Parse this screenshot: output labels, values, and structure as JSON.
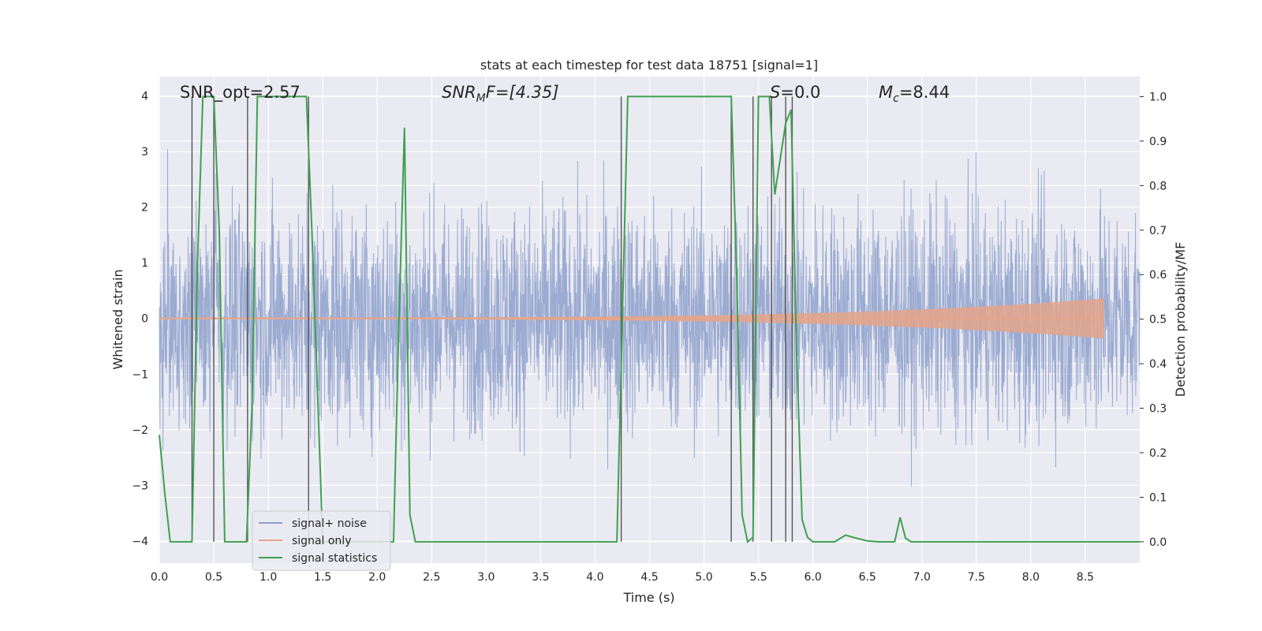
{
  "chart_data": {
    "type": "line",
    "title": "stats at each timestep for test data 18751 [signal=1]",
    "xlabel": "Time (s)",
    "ylabel_left": "Whitened strain",
    "ylabel_right": "Detection probability/MF",
    "xlim": [
      0.0,
      9.0
    ],
    "ylim_left": [
      -4.4,
      4.35
    ],
    "ylim_right": [
      -0.048,
      1.045
    ],
    "x_ticks": [
      0.0,
      0.5,
      1.0,
      1.5,
      2.0,
      2.5,
      3.0,
      3.5,
      4.0,
      4.5,
      5.0,
      5.5,
      6.0,
      6.5,
      7.0,
      7.5,
      8.0,
      8.5
    ],
    "x_tick_labels": [
      "0.0",
      "0.5",
      "1.0",
      "1.5",
      "2.0",
      "2.5",
      "3.0",
      "3.5",
      "4.0",
      "4.5",
      "5.0",
      "5.5",
      "6.0",
      "6.5",
      "7.0",
      "7.5",
      "8.0",
      "8.5"
    ],
    "y_ticks_left": [
      4,
      3,
      2,
      1,
      0,
      -1,
      -2,
      -3,
      -4
    ],
    "y_tick_labels_left": [
      "4",
      "3",
      "2",
      "1",
      "0",
      "−1",
      "−2",
      "−3",
      "−4"
    ],
    "y_ticks_right": [
      1.0,
      0.9,
      0.8,
      0.7,
      0.6,
      0.5,
      0.4,
      0.3,
      0.2,
      0.1,
      0.0
    ],
    "y_tick_labels_right": [
      "1.0",
      "0.9",
      "0.8",
      "0.7",
      "0.6",
      "0.5",
      "0.4",
      "0.3",
      "0.2",
      "0.1",
      "0.0"
    ],
    "grid": true,
    "annotations": {
      "snr_opt": "SNR_opt=2.57",
      "snr_mf_base": "SNR",
      "snr_mf_sub": "M",
      "snr_mf_rest": "F=[4.35]",
      "s_base": "S",
      "s_rest": "=0.0",
      "mc_base": "M",
      "mc_sub": "c",
      "mc_rest": "=8.44"
    },
    "legend": {
      "position": "lower-left",
      "entries": [
        "signal+ noise",
        "signal only",
        "signal statistics"
      ]
    },
    "series": [
      {
        "name": "signal+ noise",
        "axis": "left",
        "style": "noise",
        "color": "#8da0cb",
        "duration": 9.0,
        "amplitude_sigma": 1.0,
        "peak_max": 3.95,
        "peak_min": -4.0
      },
      {
        "name": "signal only",
        "axis": "left",
        "style": "chirp",
        "color": "#e4a58b",
        "t_start": 0.0,
        "t_end": 8.67,
        "amp_start": 0.01,
        "amp_end": 0.35
      },
      {
        "name": "signal statistics",
        "axis": "right",
        "style": "line",
        "color": "#3fa04f",
        "x": [
          0.0,
          0.05,
          0.1,
          0.15,
          0.2,
          0.25,
          0.3,
          0.35,
          0.4,
          0.45,
          0.5,
          0.55,
          0.6,
          0.65,
          0.7,
          0.75,
          0.8,
          0.85,
          0.9,
          0.95,
          1.0,
          1.05,
          1.1,
          1.15,
          1.2,
          1.25,
          1.3,
          1.35,
          1.4,
          1.45,
          1.5,
          1.55,
          1.6,
          1.7,
          1.8,
          1.9,
          2.0,
          2.05,
          2.1,
          2.15,
          2.2,
          2.25,
          2.3,
          2.35,
          2.4,
          2.45,
          2.5,
          2.55,
          2.6,
          2.7,
          3.0,
          3.5,
          4.0,
          4.2,
          4.25,
          4.3,
          4.5,
          5.0,
          5.25,
          5.3,
          5.35,
          5.4,
          5.45,
          5.5,
          5.55,
          5.6,
          5.65,
          5.7,
          5.75,
          5.8,
          5.85,
          5.9,
          5.95,
          6.0,
          6.05,
          6.1,
          6.2,
          6.3,
          6.4,
          6.5,
          6.6,
          6.7,
          6.75,
          6.8,
          6.85,
          6.9,
          7.0,
          7.5,
          8.0,
          8.5,
          9.0
        ],
        "y": [
          0.24,
          0.11,
          0.0,
          0.0,
          0.0,
          0.0,
          0.0,
          0.62,
          1.0,
          1.0,
          1.0,
          0.7,
          0.0,
          0.0,
          0.0,
          0.0,
          0.0,
          0.3,
          1.0,
          1.0,
          1.0,
          1.0,
          1.0,
          1.0,
          1.0,
          1.0,
          1.0,
          1.0,
          0.7,
          0.35,
          0.0,
          0.0,
          0.0,
          0.0,
          0.0,
          0.0,
          0.0,
          0.0,
          0.0,
          0.0,
          0.5,
          0.93,
          0.06,
          0.0,
          0.0,
          0.0,
          0.0,
          0.0,
          0.0,
          0.0,
          0.0,
          0.0,
          0.0,
          0.0,
          0.5,
          1.0,
          1.0,
          1.0,
          1.0,
          0.6,
          0.06,
          0.0,
          0.01,
          1.0,
          1.0,
          1.0,
          0.78,
          0.86,
          0.94,
          0.97,
          0.43,
          0.05,
          0.01,
          0.0,
          0.0,
          0.0,
          0.0,
          0.015,
          0.008,
          0.002,
          0.0,
          0.0,
          0.0,
          0.055,
          0.008,
          0.0,
          0.0,
          0.0,
          0.0,
          0.0,
          0.0
        ]
      }
    ],
    "vertical_markers": [
      0.3,
      0.5,
      0.81,
      1.37,
      4.24,
      5.25,
      5.45,
      5.62,
      5.75,
      5.81
    ]
  }
}
